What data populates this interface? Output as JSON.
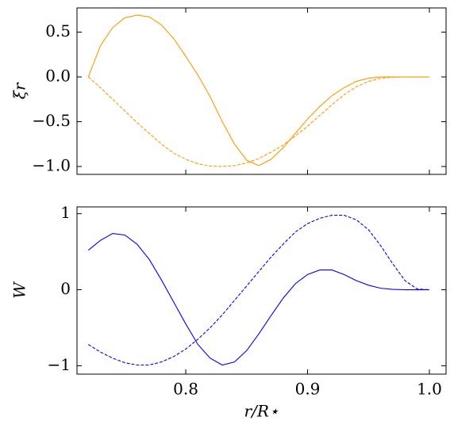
{
  "chart_data": [
    {
      "type": "line",
      "ylabel": "ξr",
      "x": [
        0.72,
        0.73,
        0.74,
        0.75,
        0.76,
        0.77,
        0.78,
        0.79,
        0.8,
        0.81,
        0.82,
        0.83,
        0.84,
        0.85,
        0.86,
        0.87,
        0.88,
        0.89,
        0.9,
        0.91,
        0.92,
        0.93,
        0.94,
        0.95,
        0.96,
        0.97,
        0.98,
        0.99,
        1.0
      ],
      "series": [
        {
          "color": "#ff9900",
          "dashed": false,
          "values": [
            0,
            0.35,
            0.55,
            0.66,
            0.69,
            0.67,
            0.58,
            0.43,
            0.23,
            0.02,
            -0.22,
            -0.5,
            -0.75,
            -0.93,
            -0.99,
            -0.92,
            -0.79,
            -0.63,
            -0.47,
            -0.33,
            -0.21,
            -0.12,
            -0.05,
            -0.015,
            0,
            0,
            0,
            0,
            0
          ]
        },
        {
          "color": "#ff9900",
          "dashed": true,
          "values": [
            0,
            -0.12,
            -0.25,
            -0.38,
            -0.51,
            -0.63,
            -0.75,
            -0.85,
            -0.92,
            -0.97,
            -0.995,
            -1.0,
            -0.99,
            -0.96,
            -0.91,
            -0.84,
            -0.76,
            -0.66,
            -0.55,
            -0.43,
            -0.31,
            -0.2,
            -0.11,
            -0.05,
            -0.015,
            -0.003,
            0,
            0,
            0
          ]
        }
      ],
      "xlim": [
        0.7107,
        1.0137
      ],
      "xticks": [
        0.8,
        0.9,
        1.0
      ],
      "ylim": [
        -1.088,
        0.77
      ],
      "yticks": [
        {
          "value": 0.5,
          "label": "0.5"
        },
        {
          "value": 0.0,
          "label": "0.0"
        },
        {
          "value": -0.5,
          "label": "−0.5"
        },
        {
          "value": -1.0,
          "label": "−1.0"
        }
      ]
    },
    {
      "type": "line",
      "ylabel": "W",
      "xlabel": "r/R⋆",
      "x": [
        0.72,
        0.73,
        0.74,
        0.75,
        0.76,
        0.77,
        0.78,
        0.79,
        0.8,
        0.81,
        0.82,
        0.83,
        0.84,
        0.85,
        0.86,
        0.87,
        0.88,
        0.89,
        0.9,
        0.91,
        0.92,
        0.93,
        0.94,
        0.95,
        0.96,
        0.97,
        0.98,
        0.99,
        1.0
      ],
      "series": [
        {
          "color": "#0000ff",
          "dashed": false,
          "values": [
            0.52,
            0.65,
            0.74,
            0.72,
            0.6,
            0.4,
            0.13,
            -0.16,
            -0.45,
            -0.72,
            -0.9,
            -0.99,
            -0.95,
            -0.8,
            -0.58,
            -0.34,
            -0.11,
            0.08,
            0.2,
            0.26,
            0.26,
            0.2,
            0.12,
            0.06,
            0.02,
            0.005,
            0,
            0,
            0
          ]
        },
        {
          "color": "#0000ff",
          "dashed": true,
          "values": [
            -0.72,
            -0.82,
            -0.9,
            -0.96,
            -0.99,
            -0.99,
            -0.95,
            -0.88,
            -0.78,
            -0.65,
            -0.5,
            -0.33,
            -0.14,
            0.05,
            0.24,
            0.43,
            0.6,
            0.76,
            0.87,
            0.94,
            0.98,
            0.98,
            0.92,
            0.79,
            0.58,
            0.34,
            0.12,
            0.01,
            0
          ]
        }
      ],
      "xlim": [
        0.7107,
        1.0137
      ],
      "xticks": [
        0.8,
        0.9,
        {
          "value": 1.0,
          "label": "1.0"
        }
      ],
      "ylim": [
        -1.11,
        1.09
      ],
      "yticks": [
        1,
        0,
        {
          "value": -1,
          "label": "−1"
        }
      ]
    }
  ]
}
